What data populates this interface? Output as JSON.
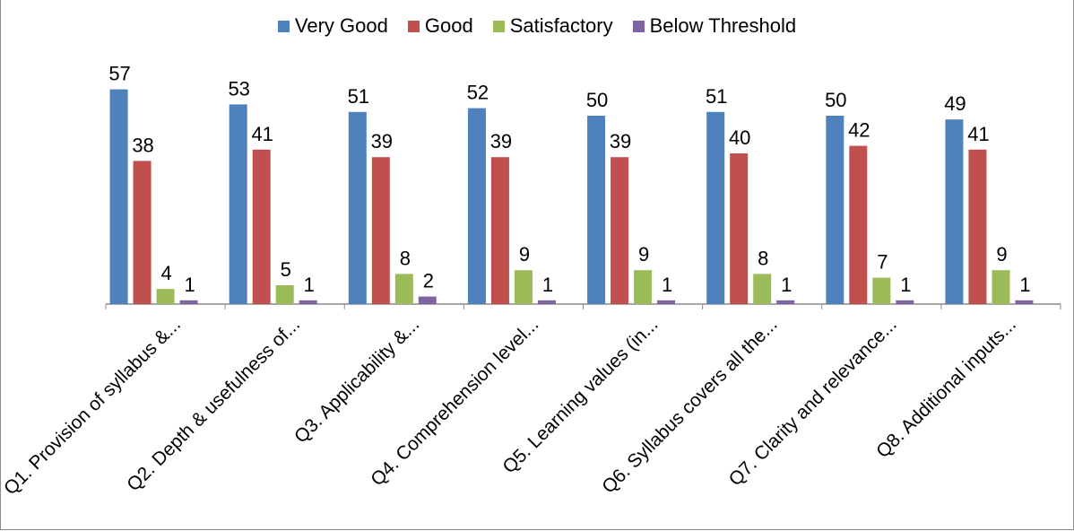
{
  "chart_data": {
    "type": "bar",
    "categories": [
      "Q1. Provision of syllabus &...",
      "Q2. Depth & usefulness of...",
      "Q3. Applicability &...",
      "Q4. Comprehension level...",
      "Q5. Learning values (in...",
      "Q6. Syllabus covers all the...",
      "Q7. Clarity and relevance...",
      "Q8. Additional inputs..."
    ],
    "series": [
      {
        "name": "Very Good",
        "color": "#4f81bd",
        "values": [
          57,
          53,
          51,
          52,
          50,
          51,
          50,
          49
        ]
      },
      {
        "name": "Good",
        "color": "#c0504d",
        "values": [
          38,
          41,
          39,
          39,
          39,
          40,
          42,
          41
        ]
      },
      {
        "name": "Satisfactory",
        "color": "#9bbb59",
        "values": [
          4,
          5,
          8,
          9,
          9,
          8,
          7,
          9
        ]
      },
      {
        "name": "Below Threshold",
        "color": "#8064a2",
        "values": [
          1,
          1,
          2,
          1,
          1,
          1,
          1,
          1
        ]
      }
    ],
    "legend_position": "top",
    "grid": false,
    "ylim": [
      0,
      60
    ]
  }
}
